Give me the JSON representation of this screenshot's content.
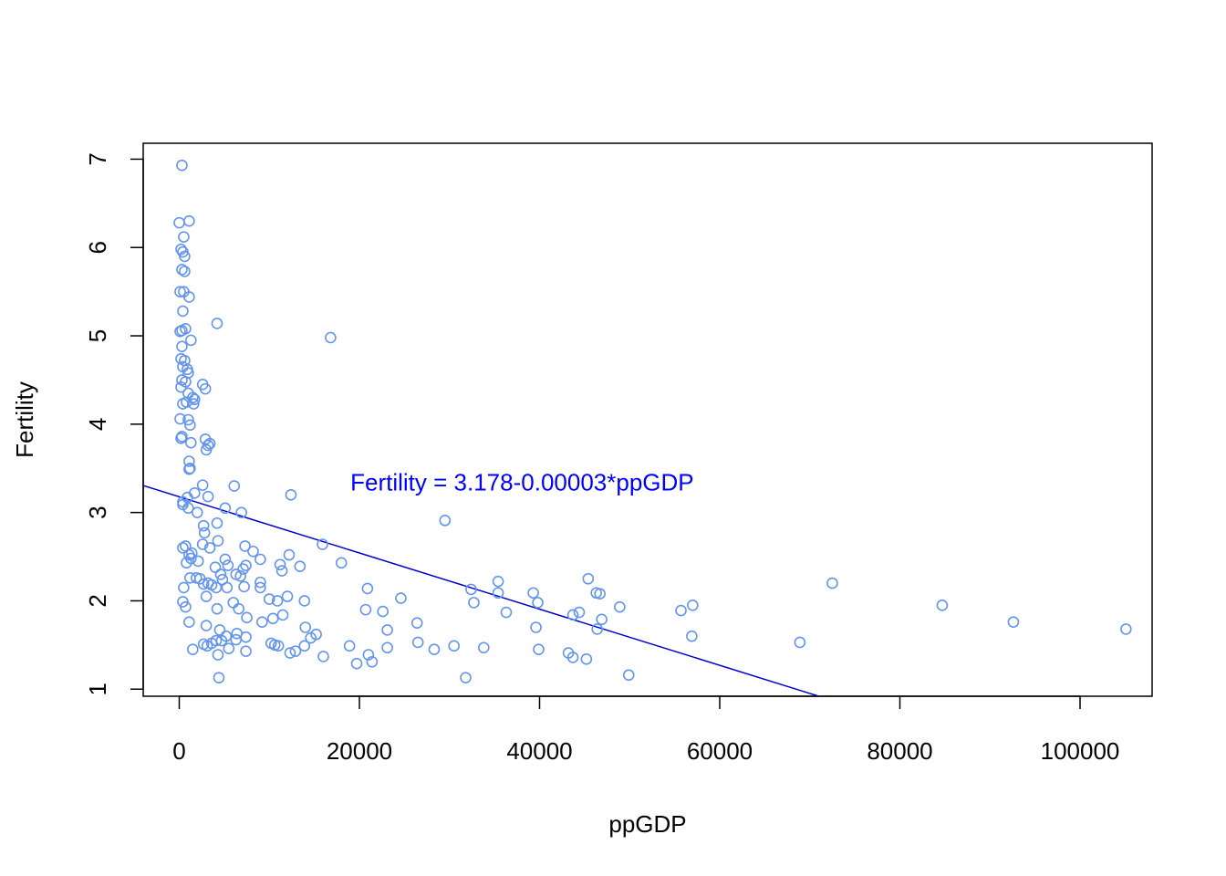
{
  "chart_data": {
    "type": "scatter",
    "title": "",
    "xlabel": "ppGDP",
    "ylabel": "Fertility",
    "xlim": [
      -4000,
      108000
    ],
    "ylim": [
      0.92,
      7.18
    ],
    "xticks": [
      0,
      20000,
      40000,
      60000,
      80000,
      100000
    ],
    "xtick_labels": [
      "0",
      "20000",
      "40000",
      "60000",
      "80000",
      "100000"
    ],
    "yticks": [
      1,
      2,
      3,
      4,
      5,
      6,
      7
    ],
    "ytick_labels": [
      "1",
      "2",
      "3",
      "4",
      "5",
      "6",
      "7"
    ],
    "grid": false,
    "point_style": "open-circle",
    "point_color": "#6495ED",
    "line_color": "#0000CD",
    "regression": {
      "intercept": 3.178,
      "slope": -3.18e-05
    },
    "annotation": {
      "text": "Fertility = 3.178-0.00003*ppGDP",
      "x": 19000,
      "y": 3.25,
      "color": "#0000FF"
    },
    "points": [
      [
        300,
        6.93
      ],
      [
        0,
        6.28
      ],
      [
        1100,
        6.3
      ],
      [
        200,
        5.98
      ],
      [
        400,
        5.95
      ],
      [
        500,
        6.12
      ],
      [
        600,
        5.9
      ],
      [
        300,
        5.75
      ],
      [
        600,
        5.73
      ],
      [
        1100,
        5.44
      ],
      [
        100,
        5.5
      ],
      [
        500,
        5.5
      ],
      [
        400,
        5.28
      ],
      [
        4200,
        5.14
      ],
      [
        100,
        5.05
      ],
      [
        300,
        5.06
      ],
      [
        700,
        5.08
      ],
      [
        1300,
        4.95
      ],
      [
        16800,
        4.98
      ],
      [
        300,
        4.88
      ],
      [
        200,
        4.74
      ],
      [
        600,
        4.72
      ],
      [
        400,
        4.65
      ],
      [
        900,
        4.62
      ],
      [
        1000,
        4.58
      ],
      [
        300,
        4.5
      ],
      [
        700,
        4.48
      ],
      [
        2600,
        4.45
      ],
      [
        2900,
        4.4
      ],
      [
        200,
        4.42
      ],
      [
        1000,
        4.35
      ],
      [
        1500,
        4.3
      ],
      [
        1700,
        4.28
      ],
      [
        800,
        4.25
      ],
      [
        1600,
        4.23
      ],
      [
        400,
        4.23
      ],
      [
        100,
        4.06
      ],
      [
        1000,
        4.05
      ],
      [
        1200,
        3.99
      ],
      [
        300,
        3.86
      ],
      [
        200,
        3.84
      ],
      [
        1300,
        3.79
      ],
      [
        2900,
        3.83
      ],
      [
        3200,
        3.76
      ],
      [
        3400,
        3.78
      ],
      [
        3000,
        3.71
      ],
      [
        1100,
        3.58
      ],
      [
        1200,
        3.5
      ],
      [
        1100,
        3.49
      ],
      [
        2600,
        3.31
      ],
      [
        6100,
        3.3
      ],
      [
        12400,
        3.2
      ],
      [
        1700,
        3.22
      ],
      [
        3200,
        3.18
      ],
      [
        900,
        3.17
      ],
      [
        400,
        3.12
      ],
      [
        400,
        3.09
      ],
      [
        1000,
        3.05
      ],
      [
        5100,
        3.05
      ],
      [
        6900,
        3.0
      ],
      [
        2000,
        3.0
      ],
      [
        29500,
        2.91
      ],
      [
        4200,
        2.88
      ],
      [
        2700,
        2.85
      ],
      [
        2800,
        2.77
      ],
      [
        4300,
        2.68
      ],
      [
        2600,
        2.64
      ],
      [
        15900,
        2.64
      ],
      [
        400,
        2.6
      ],
      [
        700,
        2.62
      ],
      [
        3400,
        2.6
      ],
      [
        7300,
        2.62
      ],
      [
        8200,
        2.56
      ],
      [
        1100,
        2.52
      ],
      [
        1400,
        2.54
      ],
      [
        12200,
        2.52
      ],
      [
        1300,
        2.48
      ],
      [
        5100,
        2.47
      ],
      [
        9000,
        2.47
      ],
      [
        800,
        2.43
      ],
      [
        2100,
        2.45
      ],
      [
        18000,
        2.43
      ],
      [
        5400,
        2.4
      ],
      [
        7400,
        2.4
      ],
      [
        11200,
        2.41
      ],
      [
        13400,
        2.39
      ],
      [
        4000,
        2.38
      ],
      [
        7100,
        2.36
      ],
      [
        11400,
        2.34
      ],
      [
        4600,
        2.3
      ],
      [
        6300,
        2.3
      ],
      [
        6800,
        2.28
      ],
      [
        1900,
        2.26
      ],
      [
        1200,
        2.26
      ],
      [
        4800,
        2.24
      ],
      [
        2300,
        2.25
      ],
      [
        45400,
        2.25
      ],
      [
        35400,
        2.22
      ],
      [
        72500,
        2.2
      ],
      [
        9000,
        2.21
      ],
      [
        3200,
        2.2
      ],
      [
        2700,
        2.19
      ],
      [
        3600,
        2.18
      ],
      [
        7200,
        2.16
      ],
      [
        9000,
        2.15
      ],
      [
        5300,
        2.15
      ],
      [
        4100,
        2.15
      ],
      [
        500,
        2.15
      ],
      [
        20900,
        2.14
      ],
      [
        32400,
        2.13
      ],
      [
        39300,
        2.09
      ],
      [
        46300,
        2.09
      ],
      [
        35400,
        2.09
      ],
      [
        46700,
        2.08
      ],
      [
        12000,
        2.05
      ],
      [
        3000,
        2.05
      ],
      [
        10000,
        2.02
      ],
      [
        24600,
        2.03
      ],
      [
        10900,
        2.0
      ],
      [
        13900,
        2.0
      ],
      [
        32700,
        1.98
      ],
      [
        39800,
        1.98
      ],
      [
        400,
        1.99
      ],
      [
        6000,
        1.98
      ],
      [
        700,
        1.93
      ],
      [
        4200,
        1.91
      ],
      [
        6600,
        1.91
      ],
      [
        20700,
        1.9
      ],
      [
        22600,
        1.88
      ],
      [
        48900,
        1.93
      ],
      [
        57000,
        1.95
      ],
      [
        84700,
        1.95
      ],
      [
        55700,
        1.89
      ],
      [
        44400,
        1.87
      ],
      [
        43700,
        1.84
      ],
      [
        36300,
        1.87
      ],
      [
        11500,
        1.84
      ],
      [
        7500,
        1.81
      ],
      [
        10400,
        1.8
      ],
      [
        9200,
        1.76
      ],
      [
        1100,
        1.76
      ],
      [
        26400,
        1.75
      ],
      [
        46900,
        1.79
      ],
      [
        92600,
        1.76
      ],
      [
        3000,
        1.72
      ],
      [
        14000,
        1.7
      ],
      [
        39600,
        1.7
      ],
      [
        46400,
        1.68
      ],
      [
        105100,
        1.68
      ],
      [
        4500,
        1.67
      ],
      [
        23100,
        1.67
      ],
      [
        6400,
        1.63
      ],
      [
        5200,
        1.6
      ],
      [
        7400,
        1.59
      ],
      [
        15200,
        1.62
      ],
      [
        14600,
        1.58
      ],
      [
        56900,
        1.6
      ],
      [
        4700,
        1.55
      ],
      [
        6300,
        1.56
      ],
      [
        4100,
        1.55
      ],
      [
        3600,
        1.52
      ],
      [
        26500,
        1.53
      ],
      [
        68900,
        1.53
      ],
      [
        2700,
        1.51
      ],
      [
        10200,
        1.52
      ],
      [
        10600,
        1.5
      ],
      [
        11000,
        1.49
      ],
      [
        13900,
        1.49
      ],
      [
        18900,
        1.49
      ],
      [
        23100,
        1.47
      ],
      [
        30500,
        1.49
      ],
      [
        33800,
        1.47
      ],
      [
        39900,
        1.45
      ],
      [
        28300,
        1.45
      ],
      [
        5500,
        1.46
      ],
      [
        1500,
        1.45
      ],
      [
        3100,
        1.49
      ],
      [
        7400,
        1.43
      ],
      [
        12300,
        1.41
      ],
      [
        12900,
        1.43
      ],
      [
        21000,
        1.39
      ],
      [
        43200,
        1.41
      ],
      [
        43700,
        1.36
      ],
      [
        45200,
        1.34
      ],
      [
        4300,
        1.39
      ],
      [
        16000,
        1.37
      ],
      [
        19700,
        1.29
      ],
      [
        21400,
        1.31
      ],
      [
        4400,
        1.13
      ],
      [
        31800,
        1.13
      ],
      [
        49900,
        1.16
      ]
    ]
  }
}
